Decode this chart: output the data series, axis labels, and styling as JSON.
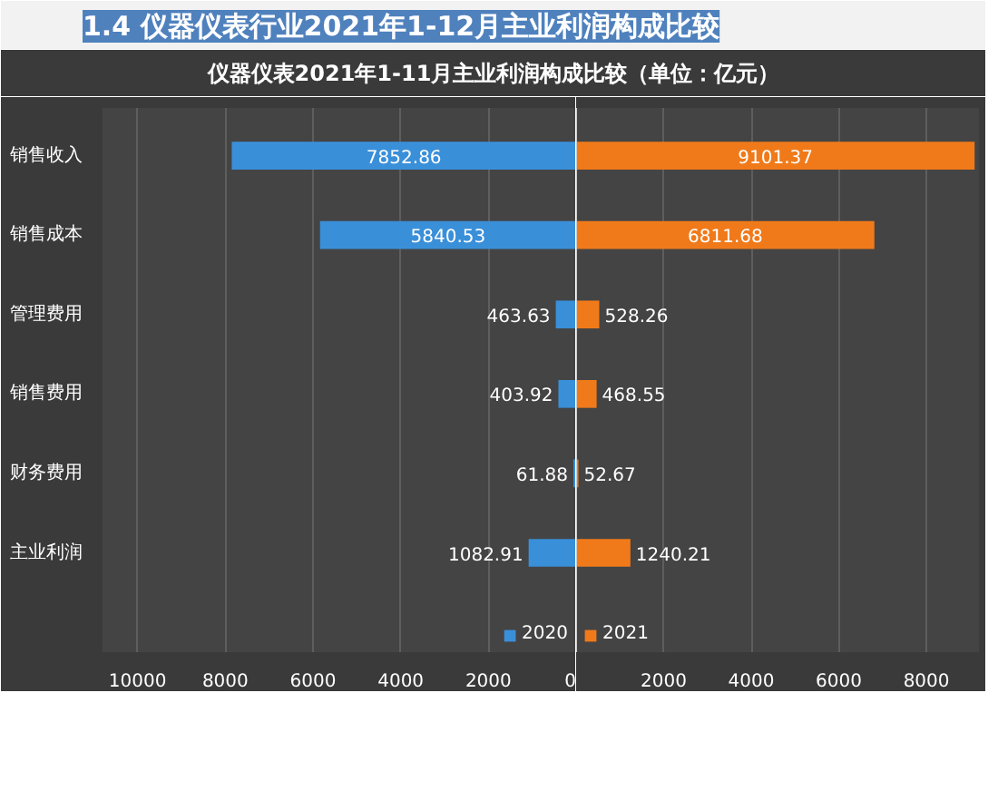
{
  "chart_data": [
    {
      "type": "bar",
      "orientation": "horizontal",
      "title": "1.4 仪器仪表行业2021年1-12月主业利润构成比较",
      "subtitle": "仪器仪表2021年1-11月主业利润构成比较（单位：亿元）",
      "categories": [
        "销售收入",
        "销售成本",
        "管理费用",
        "销售费用",
        "财务费用",
        "主业利润"
      ],
      "series": [
        {
          "name": "2020",
          "color": "#3a8fd9",
          "values": [
            7852.86,
            5840.53,
            463.63,
            403.92,
            61.88,
            1082.91
          ]
        }
      ],
      "data_labels": true,
      "xlim": [
        10800,
        0
      ],
      "xticks": [
        10000,
        8000,
        6000,
        4000,
        2000,
        0
      ],
      "grid": "x",
      "legend": "bottom right"
    },
    {
      "type": "bar",
      "orientation": "horizontal",
      "categories": [
        null,
        null,
        null,
        null,
        null,
        null
      ],
      "series": [
        {
          "name": "2021",
          "color": "#f07a1a",
          "values": [
            9101.37,
            6811.68,
            528.26,
            468.55,
            52.67,
            1240.21
          ]
        }
      ],
      "data_labels": true,
      "xlim": [
        0,
        9200
      ],
      "xticks": [
        2000,
        4000,
        6000,
        8000
      ],
      "grid": "x",
      "legend": "bottom left",
      "tick_labels": "x"
    }
  ]
}
